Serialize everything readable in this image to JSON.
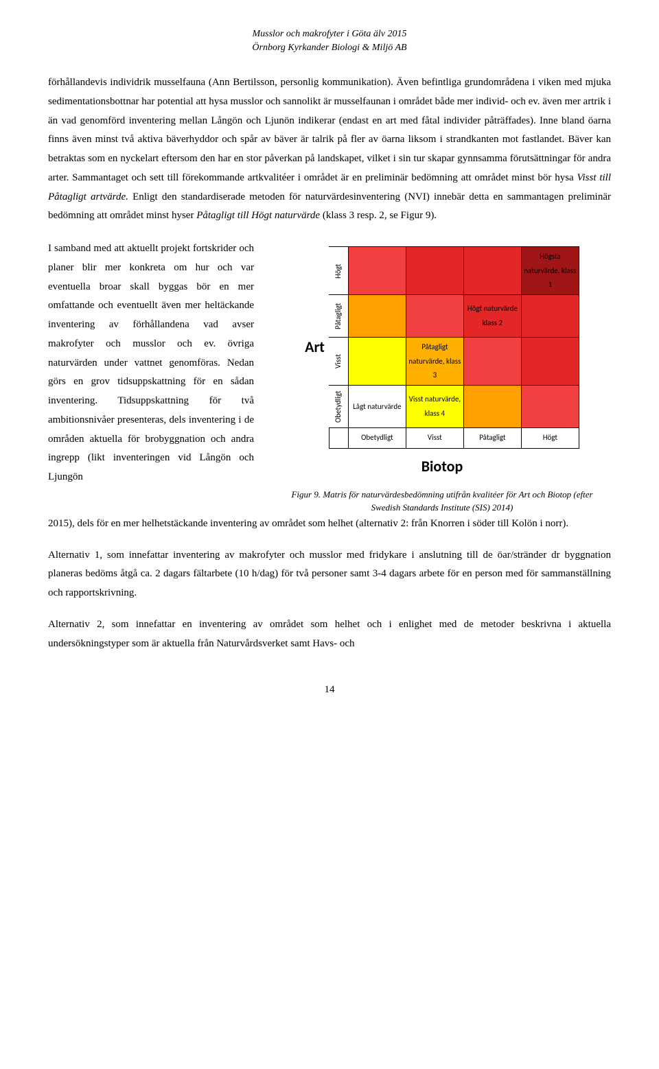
{
  "header": {
    "line1": "Musslor och makrofyter i Göta älv 2015",
    "line2": "Örnborg Kyrkander Biologi & Miljö AB"
  },
  "para1": {
    "t1": "förhållandevis individrik musselfauna (Ann Bertilsson, personlig kommunikation). Även befintliga grundområdena i viken med mjuka sedimentationsbottnar har potential att hysa musslor och sannolikt är musselfaunan i området både mer individ- och ev. även mer artrik i än vad genomförd inventering mellan Långön och Ljunön indikerar (endast en art med fåtal individer påträffades). Inne bland öarna finns även minst två aktiva bäverhyddor och spår av bäver är talrik på fler av öarna liksom i strandkanten mot fastlandet. Bäver kan betraktas som en nyckelart eftersom den har en stor påverkan på landskapet, vilket i sin tur skapar gynnsamma förutsättningar för andra arter. Sammantaget och sett till förekommande artkvalitéer i området är en preliminär bedömning att området minst bör hysa ",
    "i1": "Visst till Påtagligt artvärde.",
    "t2": " Enligt den standardiserade metoden för naturvärdesinventering (NVI) innebär detta en sammantagen preliminär bedömning att området minst hyser ",
    "i2": "Påtagligt till Högt naturvärde",
    "t3": " (klass 3 resp. 2, se Figur 9)."
  },
  "leftcol": "I samband med att aktuellt projekt fortskrider och planer blir mer konkreta om hur och var eventuella broar skall byggas bör en mer omfattande och eventuellt även mer heltäckande inventering av förhållandena vad avser makrofyter och musslor och ev. övriga naturvärden under vattnet genomföras. Nedan görs en grov tidsuppskattning för en sådan inventering. Tidsuppskattning för två ambitionsnivåer presenteras, dels inventering i de områden aktuella för brobyggnation och andra ingrepp (likt inventeringen vid Långön och Ljungön",
  "post_matrix": "2015), dels för en mer helhetstäckande inventering av området som helhet (alternativ 2: från Knorren i söder till Kolön i norr).",
  "para_alt1": "Alternativ 1, som innefattar inventering av makrofyter och musslor med fridykare i anslutning till de öar/stränder dr byggnation planeras bedöms åtgå ca. 2 dagars fältarbete (10 h/dag) för två personer samt 3-4 dagars arbete för en person med för sammanställning och rapportskrivning.",
  "para_alt2": "Alternativ 2, som innefattar en inventering av området som helhet och i enlighet med de metoder beskrivna i aktuella undersökningstyper som är aktuella från Naturvårdsverket samt Havs- och",
  "matrix": {
    "axis_y": "Art",
    "axis_x": "Biotop",
    "row_labels": [
      "Högt",
      "Påtagligt",
      "Visst",
      "Obetydligt"
    ],
    "col_labels": [
      "Obetydligt",
      "Visst",
      "Påtagligt",
      "Högt"
    ],
    "cells": {
      "k1": "Högsta naturvärde, klass 1",
      "k2": "Högt naturvärde klass 2",
      "k3": "Påtagligt naturvärde, klass 3",
      "k4": "Visst naturvärde, klass 4",
      "low": "Lågt naturvärde"
    },
    "colors": {
      "k1": "#a01515",
      "k2_dark": "#e32626",
      "k2_light": "#f14040",
      "k3": "#ffb000",
      "k3_mid": "#ffa000",
      "k4": "#ffff00",
      "low": "#ffffff"
    }
  },
  "caption": "Figur 9. Matris för naturvärdesbedömning utifrån kvalitéer för Art och Biotop (efter Swedish Standards Institute (SIS) 2014)",
  "page_number": "14"
}
